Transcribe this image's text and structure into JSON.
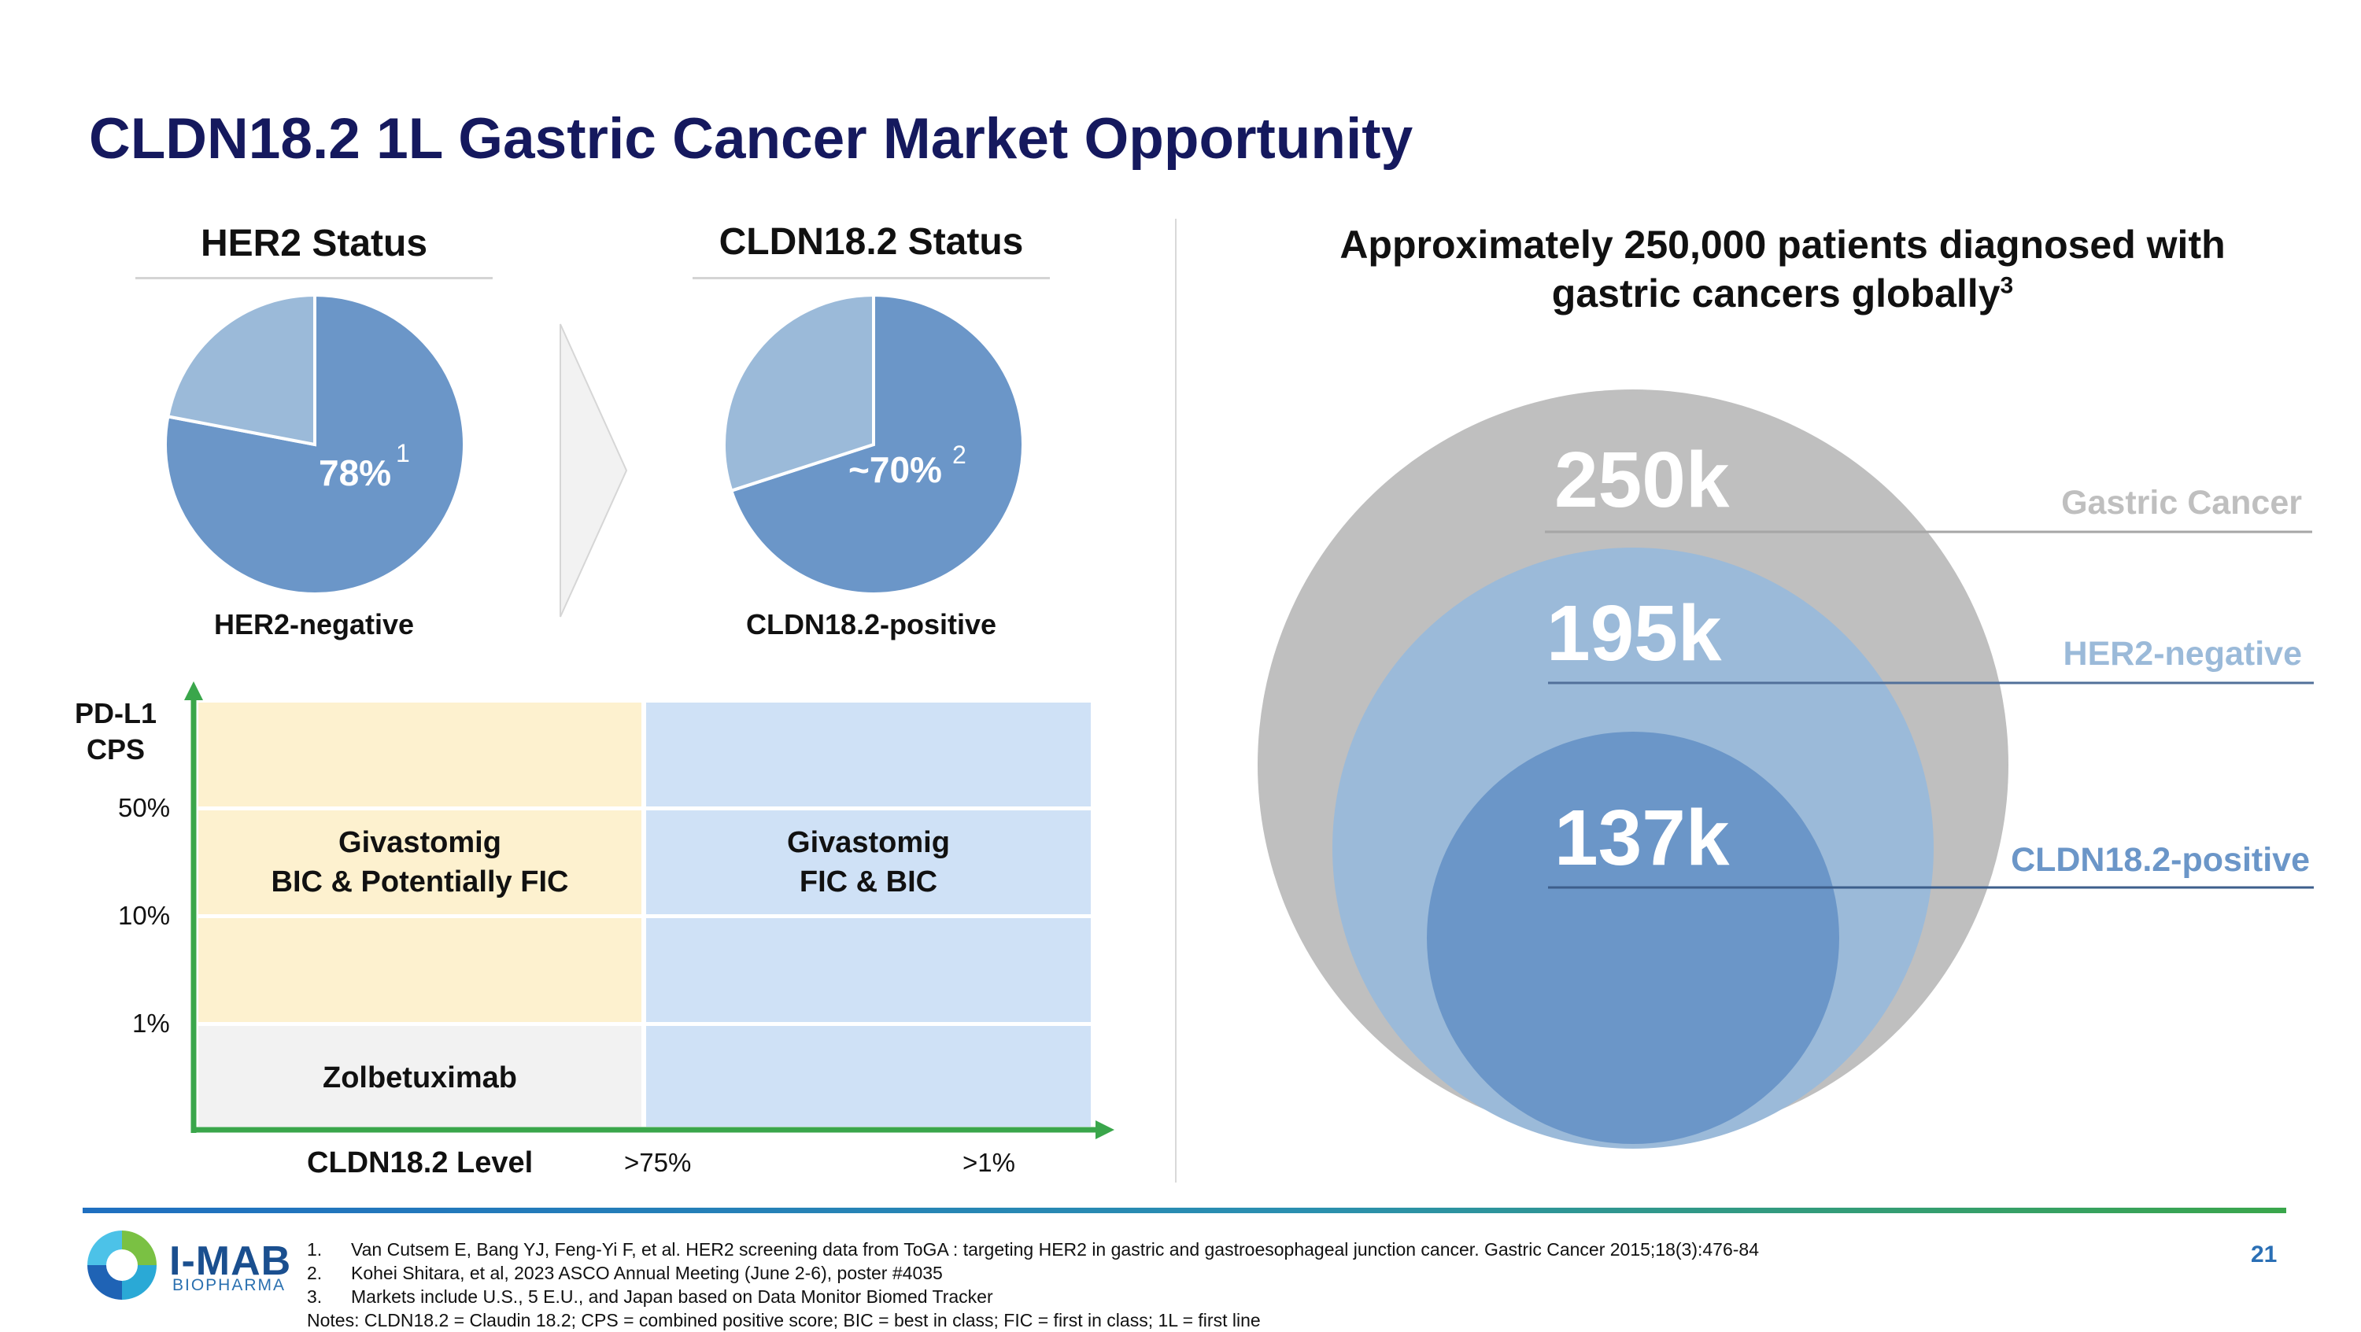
{
  "title": "CLDN18.2 1L Gastric Cancer Market Opportunity",
  "her2_pie": {
    "heading": "HER2 Status",
    "caption": "HER2-negative",
    "value_label": "78%",
    "footnote": "1",
    "value": 78
  },
  "cldn_pie": {
    "heading": "CLDN18.2 Status",
    "caption": "CLDN18.2-positive",
    "prefix": "~",
    "value_label": "70%",
    "footnote": "2",
    "value": 70
  },
  "colors": {
    "title": "#15195e",
    "pie_main": "#6b96c8",
    "pie_rest": "#9bbad9",
    "outer_circle": "#bfbfbf",
    "middle_circle": "#9bbad9",
    "inner_circle": "#6b96c8",
    "cell_yellow": "#fdf1cf",
    "cell_blue": "#cfe1f6",
    "cell_gray": "#f2f2f2",
    "axis": "#3aa64b"
  },
  "grid": {
    "y_axis_label_line1": "PD-L1",
    "y_axis_label_line2": "CPS",
    "y_ticks": [
      "50%",
      "10%",
      "1%"
    ],
    "x_axis_label": "CLDN18.2 Level",
    "x_ticks": [
      ">75%",
      ">1%"
    ],
    "cell_left": {
      "line1": "Givastomig",
      "line2": "BIC & Potentially FIC"
    },
    "cell_right": {
      "line1": "Givastomig",
      "line2": "FIC & BIC"
    },
    "cell_bottom": "Zolbetuximab"
  },
  "market": {
    "heading_line1": "Approximately 250,000 patients diagnosed with",
    "heading_line2": "gastric cancers globally",
    "heading_footnote": "3",
    "segments": [
      {
        "value": "250k",
        "label": "Gastric Cancer",
        "color": "#bfbfbf"
      },
      {
        "value": "195k",
        "label": "HER2-negative",
        "color": "#9bbad9"
      },
      {
        "value": "137k",
        "label": "CLDN18.2-positive",
        "color": "#6b96c8"
      }
    ]
  },
  "footer": {
    "logo_name": "I-MAB",
    "logo_sub": "BIOPHARMA",
    "page_number": "21",
    "references": [
      {
        "num": "1.",
        "text": "Van Cutsem E, Bang YJ, Feng-Yi F, et al. HER2 screening data from ToGA : targeting HER2 in gastric and gastroesophageal junction cancer. Gastric Cancer 2015;18(3):476-84"
      },
      {
        "num": "2.",
        "text": "Kohei Shitara, et al, 2023 ASCO Annual Meeting (June 2-6), poster #4035"
      },
      {
        "num": "3.",
        "text": "Markets include U.S., 5 E.U., and Japan based on Data Monitor Biomed Tracker"
      }
    ],
    "notes": "Notes: CLDN18.2 = Claudin 18.2; CPS = combined positive score; BIC = best in class; FIC = first in class; 1L = first line"
  }
}
